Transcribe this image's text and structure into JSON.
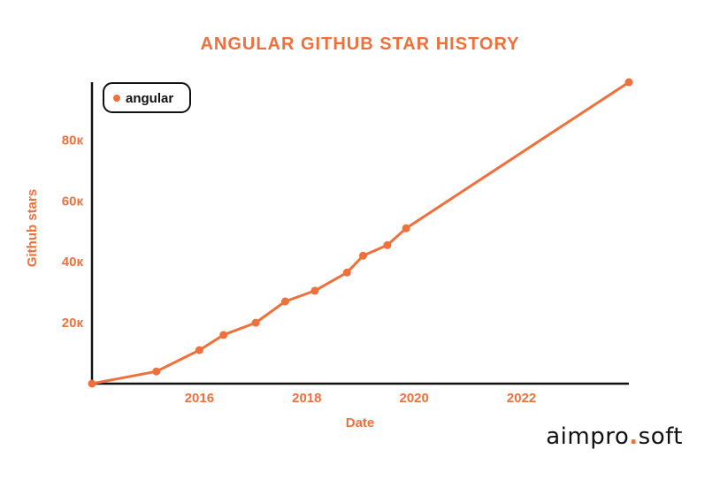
{
  "colors": {
    "accent": "#f0703c",
    "axis": "#111111",
    "legend_border": "#111111"
  },
  "logo": {
    "left": "aimpro",
    "dot": ".",
    "right": "soft"
  },
  "chart_data": {
    "type": "line",
    "title": "ANGULAR GITHUB STAR HISTORY",
    "xlabel": "Date",
    "ylabel": "Github stars",
    "x_type": "year",
    "xlim": [
      2014.0,
      2024.0
    ],
    "ylim": [
      0,
      99000
    ],
    "xticks": [
      2016,
      2018,
      2020,
      2022
    ],
    "xtick_labels": [
      "2016",
      "2018",
      "2020",
      "2022"
    ],
    "yticks": [
      20000,
      40000,
      60000,
      80000
    ],
    "ytick_labels": [
      "20к",
      "40к",
      "60к",
      "80к"
    ],
    "grid": false,
    "legend_position": "top-left",
    "series": [
      {
        "name": "angular",
        "x": [
          2014.0,
          2015.2,
          2016.0,
          2016.45,
          2017.05,
          2017.6,
          2018.15,
          2018.75,
          2019.05,
          2019.5,
          2019.85,
          2024.0
        ],
        "y": [
          0,
          4000,
          11000,
          16000,
          20000,
          27000,
          30500,
          36500,
          42000,
          45500,
          51000,
          99000
        ]
      }
    ]
  }
}
